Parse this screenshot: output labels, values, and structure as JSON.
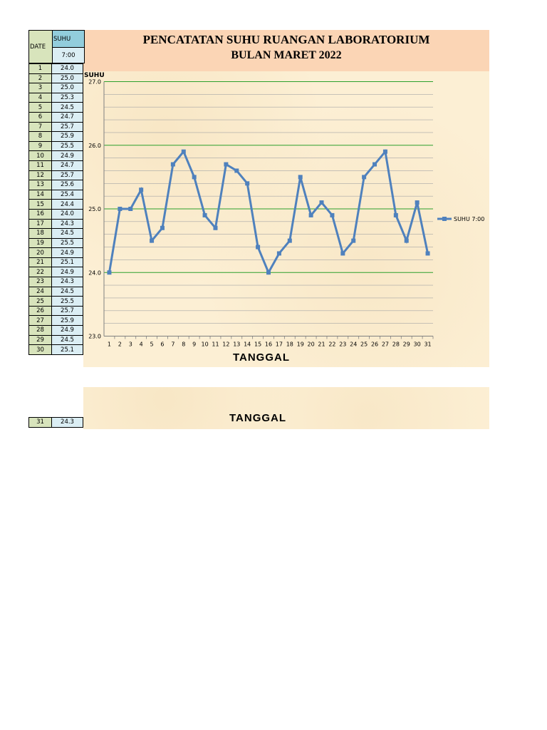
{
  "header": {
    "title_line1": "PENCATATAN SUHU RUANGAN LABORATORIUM",
    "title_line2": "BULAN MARET 2022"
  },
  "table": {
    "date_header": "DATE",
    "suhu_header": "SUHU",
    "time_header": "7:00",
    "rows": [
      {
        "day": "1",
        "value": "24.0"
      },
      {
        "day": "2",
        "value": "25.0"
      },
      {
        "day": "3",
        "value": "25.0"
      },
      {
        "day": "4",
        "value": "25.3"
      },
      {
        "day": "5",
        "value": "24.5"
      },
      {
        "day": "6",
        "value": "24.7"
      },
      {
        "day": "7",
        "value": "25.7"
      },
      {
        "day": "8",
        "value": "25.9"
      },
      {
        "day": "9",
        "value": "25.5"
      },
      {
        "day": "10",
        "value": "24.9"
      },
      {
        "day": "11",
        "value": "24.7"
      },
      {
        "day": "12",
        "value": "25.7"
      },
      {
        "day": "13",
        "value": "25.6"
      },
      {
        "day": "14",
        "value": "25.4"
      },
      {
        "day": "15",
        "value": "24.4"
      },
      {
        "day": "16",
        "value": "24.0"
      },
      {
        "day": "17",
        "value": "24.3"
      },
      {
        "day": "18",
        "value": "24.5"
      },
      {
        "day": "19",
        "value": "25.5"
      },
      {
        "day": "20",
        "value": "24.9"
      },
      {
        "day": "21",
        "value": "25.1"
      },
      {
        "day": "22",
        "value": "24.9"
      },
      {
        "day": "23",
        "value": "24.3"
      },
      {
        "day": "24",
        "value": "24.5"
      },
      {
        "day": "25",
        "value": "25.5"
      },
      {
        "day": "26",
        "value": "25.7"
      },
      {
        "day": "27",
        "value": "25.9"
      },
      {
        "day": "28",
        "value": "24.9"
      },
      {
        "day": "29",
        "value": "24.5"
      },
      {
        "day": "30",
        "value": "25.1"
      }
    ],
    "last_row": {
      "day": "31",
      "value": "24.3"
    }
  },
  "chart_data": {
    "type": "line",
    "title": "",
    "ylabel": "SUHU",
    "xlabel": "TANGGAL",
    "ylim": [
      23.0,
      27.0
    ],
    "y_ticks": [
      "23.0",
      "24.0",
      "25.0",
      "26.0",
      "27.0"
    ],
    "major_grid_color": "#2ca02c",
    "minor_grid_color": "#a6a6a6",
    "x": [
      1,
      2,
      3,
      4,
      5,
      6,
      7,
      8,
      9,
      10,
      11,
      12,
      13,
      14,
      15,
      16,
      17,
      18,
      19,
      20,
      21,
      22,
      23,
      24,
      25,
      26,
      27,
      28,
      29,
      30,
      31
    ],
    "series": [
      {
        "name": "SUHU  7:00",
        "color": "#4f81bd",
        "values": [
          24.0,
          25.0,
          25.0,
          25.3,
          24.5,
          24.7,
          25.7,
          25.9,
          25.5,
          24.9,
          24.7,
          25.7,
          25.6,
          25.4,
          24.4,
          24.0,
          24.3,
          24.5,
          25.5,
          24.9,
          25.1,
          24.9,
          24.3,
          24.5,
          25.5,
          25.7,
          25.9,
          24.9,
          24.5,
          25.1,
          24.3
        ]
      }
    ],
    "legend_position": "right",
    "grid": true
  }
}
